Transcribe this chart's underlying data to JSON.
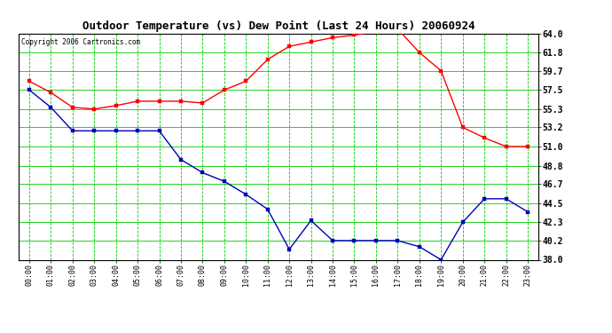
{
  "title": "Outdoor Temperature (vs) Dew Point (Last 24 Hours) 20060924",
  "copyright": "Copyright 2006 Cartronics.com",
  "hours": [
    0,
    1,
    2,
    3,
    4,
    5,
    6,
    7,
    8,
    9,
    10,
    11,
    12,
    13,
    14,
    15,
    16,
    17,
    18,
    19,
    20,
    21,
    22,
    23
  ],
  "temp_red": [
    58.5,
    57.2,
    55.5,
    55.3,
    55.7,
    56.2,
    56.2,
    56.2,
    56.0,
    57.5,
    58.5,
    61.0,
    62.5,
    63.0,
    63.5,
    63.8,
    64.2,
    64.5,
    61.8,
    59.7,
    53.2,
    52.0,
    51.0,
    51.0
  ],
  "dew_blue": [
    57.5,
    55.5,
    52.8,
    52.8,
    52.8,
    52.8,
    52.8,
    49.5,
    48.0,
    47.0,
    45.5,
    43.8,
    39.2,
    42.5,
    40.2,
    40.2,
    40.2,
    40.2,
    39.5,
    38.0,
    42.3,
    45.0,
    45.0,
    43.5
  ],
  "ylim": [
    38.0,
    64.0
  ],
  "yticks": [
    38.0,
    40.2,
    42.3,
    44.5,
    46.7,
    48.8,
    51.0,
    53.2,
    55.3,
    57.5,
    59.7,
    61.8,
    64.0
  ],
  "bg_color": "#ffffff",
  "plot_bg": "#ffffff",
  "grid_color_h": "#00cc00",
  "grid_color_v": "#00cc00",
  "red_color": "#ff0000",
  "blue_color": "#0000bb",
  "title_color": "#000000",
  "marker_size": 2.5,
  "line_width": 1.0
}
